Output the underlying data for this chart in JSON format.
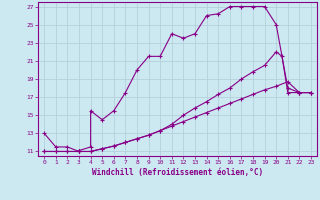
{
  "xlabel": "Windchill (Refroidissement éolien,°C)",
  "bg_color": "#cce8f0",
  "line_color": "#880088",
  "grid_color": "#b0cdd8",
  "xlim": [
    -0.5,
    23.5
  ],
  "ylim": [
    10.5,
    27.5
  ],
  "xticks": [
    0,
    1,
    2,
    3,
    4,
    5,
    6,
    7,
    8,
    9,
    10,
    11,
    12,
    13,
    14,
    15,
    16,
    17,
    18,
    19,
    20,
    21,
    22,
    23
  ],
  "yticks": [
    11,
    13,
    15,
    17,
    19,
    21,
    23,
    25,
    27
  ],
  "line1_x": [
    0,
    1,
    2,
    3,
    3,
    4,
    4,
    5,
    6,
    7,
    8,
    9,
    10,
    11,
    12,
    13,
    14,
    15,
    16,
    17,
    18,
    19,
    20,
    21,
    22,
    23
  ],
  "line1_y": [
    13,
    11.5,
    11.5,
    11,
    11.1,
    11.5,
    15.5,
    14.5,
    15.5,
    17.5,
    20,
    21.5,
    21.5,
    24,
    23.5,
    24,
    26,
    26.2,
    27,
    27,
    27,
    27,
    25,
    18,
    17.5,
    17.5
  ],
  "line2_x": [
    0,
    1,
    2,
    3,
    4,
    5,
    6,
    7,
    8,
    9,
    10,
    11,
    12,
    13,
    14,
    15,
    16,
    17,
    18,
    19,
    20,
    21,
    22,
    23
  ],
  "line2_y": [
    11,
    11,
    11,
    11,
    11,
    11.3,
    11.6,
    12.0,
    12.4,
    12.8,
    13.3,
    13.8,
    14.3,
    14.8,
    15.3,
    15.8,
    16.3,
    16.8,
    17.3,
    17.8,
    18.2,
    18.7,
    17.5,
    17.5
  ],
  "line3_x": [
    0,
    1,
    2,
    3,
    4,
    5,
    6,
    7,
    8,
    9,
    10,
    11,
    12,
    13,
    14,
    15,
    16,
    17,
    18,
    19,
    20,
    20.5,
    21,
    22,
    23
  ],
  "line3_y": [
    11,
    11,
    11,
    11,
    11,
    11.3,
    11.6,
    12.0,
    12.4,
    12.8,
    13.3,
    14.0,
    15.0,
    15.8,
    16.5,
    17.3,
    18.0,
    19.0,
    19.8,
    20.5,
    22.0,
    21.5,
    17.5,
    17.5,
    17.5
  ]
}
